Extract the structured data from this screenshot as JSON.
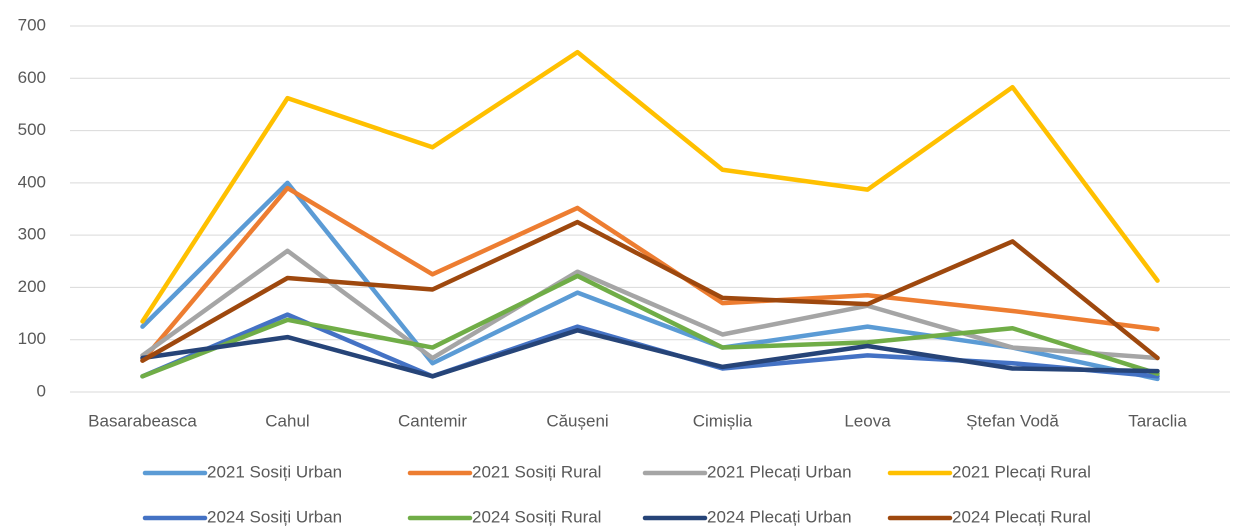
{
  "chart_data": {
    "type": "line",
    "categories": [
      "Basarabeasca",
      "Cahul",
      "Cantemir",
      "Căușeni",
      "Cimișlia",
      "Leova",
      "Ștefan Vodă",
      "Taraclia"
    ],
    "series": [
      {
        "name": "2021 Sosiți Urban",
        "color": "#5b9bd5",
        "values": [
          125,
          400,
          55,
          190,
          85,
          125,
          85,
          25
        ]
      },
      {
        "name": "2021 Sosiți Rural",
        "color": "#ed7d31",
        "values": [
          60,
          390,
          225,
          352,
          170,
          185,
          155,
          120
        ]
      },
      {
        "name": "2021 Plecați Urban",
        "color": "#a5a5a5",
        "values": [
          70,
          270,
          65,
          230,
          110,
          165,
          85,
          65
        ]
      },
      {
        "name": "2021 Plecați Rural",
        "color": "#ffc000",
        "values": [
          135,
          562,
          468,
          650,
          425,
          387,
          583,
          213
        ]
      },
      {
        "name": "2024 Sosiți Urban",
        "color": "#4472c4",
        "values": [
          30,
          148,
          30,
          125,
          45,
          70,
          55,
          30
        ]
      },
      {
        "name": "2024 Sosiți Rural",
        "color": "#70ad47",
        "values": [
          30,
          138,
          85,
          222,
          85,
          95,
          122,
          35
        ]
      },
      {
        "name": "2024 Plecați Urban",
        "color": "#264478",
        "values": [
          65,
          105,
          30,
          118,
          48,
          88,
          45,
          40
        ]
      },
      {
        "name": "2024 Plecați Rural",
        "color": "#9e480e",
        "values": [
          60,
          218,
          196,
          325,
          180,
          168,
          288,
          65
        ]
      }
    ],
    "ylim": [
      0,
      700
    ],
    "yticks": [
      0,
      100,
      200,
      300,
      400,
      500,
      600,
      700
    ],
    "grid": true,
    "legend": "bottom"
  }
}
